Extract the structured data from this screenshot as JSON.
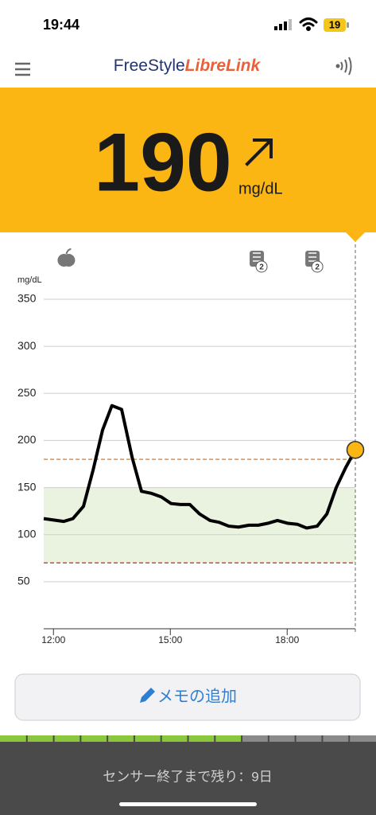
{
  "status_bar": {
    "time": "19:44",
    "battery": "19"
  },
  "header": {
    "logo_part1": "FreeStyle",
    "logo_part2": "LibreLink"
  },
  "reading": {
    "value": 190,
    "unit": "mg/dL"
  },
  "chart_data": {
    "type": "line",
    "y_label": "mg/dL",
    "x": [
      11.75,
      12.26,
      12.5,
      12.77,
      13.02,
      13.26,
      13.5,
      13.75,
      14.02,
      14.26,
      14.5,
      14.77,
      15.02,
      15.26,
      15.5,
      15.75,
      16.02,
      16.26,
      16.5,
      16.75,
      17.02,
      17.26,
      17.5,
      17.75,
      18.02,
      18.26,
      18.5,
      18.77,
      19.02,
      19.26,
      19.5,
      19.75
    ],
    "series": [
      {
        "color": "#000000",
        "values": [
          117,
          114,
          117,
          130,
          169,
          211,
          237,
          233,
          182,
          146,
          144,
          140,
          133,
          132,
          132,
          122,
          115,
          113,
          109,
          108,
          110,
          110,
          112,
          115,
          112,
          111,
          107,
          109,
          122,
          150,
          171,
          190
        ]
      }
    ],
    "xlim": [
      11.75,
      19.75
    ],
    "ylim": [
      0,
      350
    ],
    "xticks": [
      {
        "value": 12,
        "label": "12:00"
      },
      {
        "value": 15,
        "label": "15:00"
      },
      {
        "value": 18,
        "label": "18:00"
      }
    ],
    "yticks": [
      50,
      100,
      150,
      200,
      250,
      300,
      350
    ],
    "grid": true,
    "target_range": [
      70,
      150
    ],
    "high_line": 180,
    "low_line": 70,
    "events": [
      {
        "kind": "food",
        "x": 12.33
      },
      {
        "kind": "note",
        "x": 17.22,
        "badge": "2"
      },
      {
        "kind": "note",
        "x": 18.65,
        "badge": "2"
      }
    ]
  },
  "button": {
    "label": "メモの追加"
  },
  "footer": {
    "text": "センサー終了まで残り：9日",
    "segments_total": 14,
    "segments_filled": 9
  }
}
